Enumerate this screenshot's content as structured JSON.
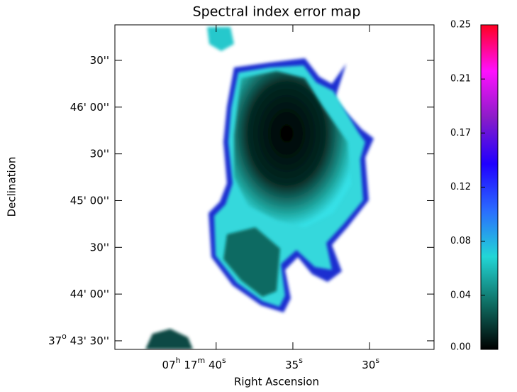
{
  "chart_data": {
    "type": "image",
    "title": "Spectral index error map",
    "xlabel": "Right Ascension",
    "ylabel": "Declination",
    "xlim": [
      46.6,
      25.8
    ],
    "xticks": [
      {
        "value": 40,
        "label": [
          "07",
          "h",
          " 17",
          "m",
          " 40",
          "s"
        ]
      },
      {
        "value": 35,
        "label": [
          "35",
          "s"
        ]
      },
      {
        "value": 30,
        "label": [
          "30",
          "s"
        ]
      }
    ],
    "ylim": [
      24.5,
      232.8
    ],
    "yticks": [
      {
        "value": 30,
        "label": [
          "37",
          "o",
          " 43' 30''"
        ]
      },
      {
        "value": 60,
        "label": [
          "44' 00''"
        ]
      },
      {
        "value": 90,
        "label": [
          "30''"
        ]
      },
      {
        "value": 120,
        "label": [
          "45' 00''"
        ]
      },
      {
        "value": 150,
        "label": [
          "30''"
        ]
      },
      {
        "value": 180,
        "label": [
          "46' 00''"
        ]
      },
      {
        "value": 210,
        "label": [
          "30''"
        ]
      }
    ],
    "colorbar": {
      "lim": [
        0,
        0.25
      ],
      "colors": [
        "#000000",
        "#0f6f64",
        "#22d6d6",
        "#2a6cff",
        "#2000ff",
        "#8a1cc8",
        "#ff10ff",
        "#ff0020"
      ],
      "ticks": [
        {
          "value": 0,
          "label": "0.00"
        },
        {
          "value": 0.0417,
          "label": "0.04"
        },
        {
          "value": 0.0833,
          "label": "0.08"
        },
        {
          "value": 0.125,
          "label": "0.12"
        },
        {
          "value": 0.1667,
          "label": "0.17"
        },
        {
          "value": 0.2083,
          "label": "0.21"
        },
        {
          "value": 0.25,
          "label": "0.25"
        }
      ]
    }
  }
}
